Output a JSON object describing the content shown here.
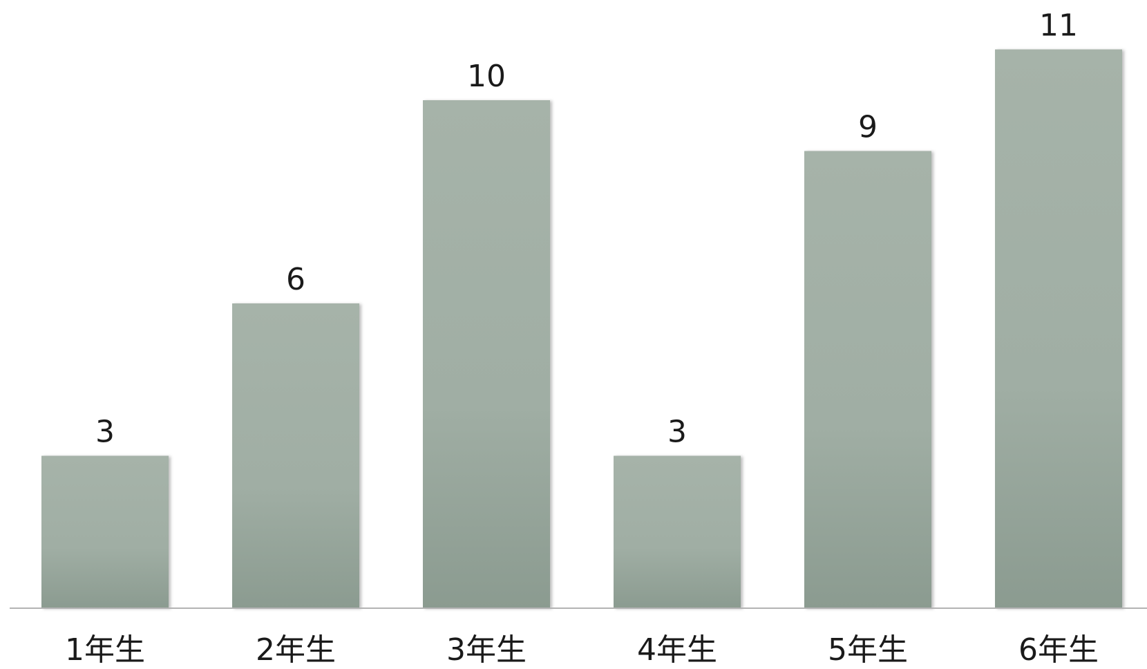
{
  "chart_data": {
    "type": "bar",
    "categories": [
      "1年生",
      "2年生",
      "3年生",
      "4年生",
      "5年生",
      "6年生"
    ],
    "values": [
      3,
      6,
      10,
      3,
      9,
      11
    ],
    "title": "",
    "xlabel": "",
    "ylabel": "",
    "ylim": [
      0,
      11
    ],
    "grid": false,
    "legend": "none",
    "data_labels": true
  },
  "colors": {
    "bar_top": "#a5b2a8",
    "bar_bottom": "#8c9c91",
    "axis": "#b3b3b3",
    "text": "#1a1a1a",
    "background": "#ffffff"
  }
}
